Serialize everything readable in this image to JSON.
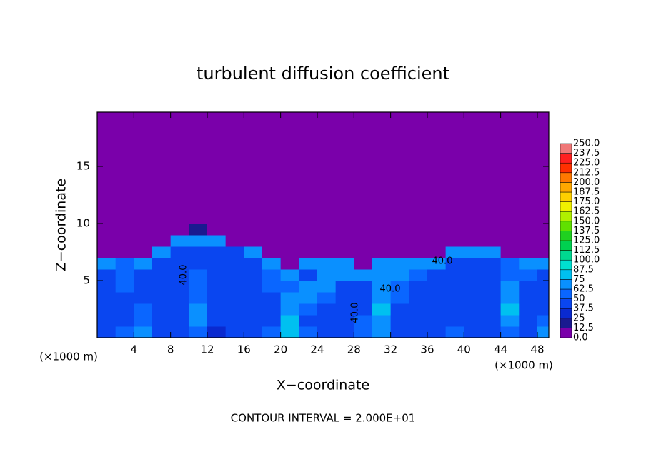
{
  "chart_data": {
    "type": "heatmap",
    "title": "turbulent  diffusion  coefficient",
    "x_label": "X−coordinate",
    "y_label": "Z−coordinate",
    "x_unit_left": "(×1000 m)",
    "x_unit_right": "(×1000 m)",
    "footer": "CONTOUR INTERVAL = 2.000E+01",
    "xlim": [
      0,
      49.25
    ],
    "ylim": [
      0,
      19.75
    ],
    "xticks": [
      4,
      8,
      12,
      16,
      20,
      24,
      28,
      32,
      36,
      40,
      44,
      48
    ],
    "yticks": [
      5,
      10,
      15
    ],
    "x": [
      1,
      3,
      5,
      7,
      9,
      11,
      13,
      15,
      17,
      19,
      21,
      23,
      25,
      27,
      29,
      31,
      33,
      35,
      37,
      39,
      41,
      43,
      45,
      47,
      49
    ],
    "y": [
      0.5,
      1.5,
      2.5,
      3.5,
      4.5,
      5.5,
      6.5,
      7.5,
      8.5,
      9.5
    ],
    "z": [
      [
        45,
        55,
        70,
        40,
        45,
        60,
        35,
        40,
        45,
        55,
        80,
        50,
        40,
        45,
        60,
        70,
        45,
        40,
        45,
        55,
        40,
        45,
        60,
        40,
        70
      ],
      [
        40,
        45,
        60,
        38,
        42,
        70,
        38,
        40,
        42,
        45,
        75,
        45,
        40,
        40,
        55,
        72,
        42,
        40,
        42,
        45,
        40,
        45,
        70,
        38,
        50
      ],
      [
        42,
        40,
        50,
        40,
        40,
        65,
        40,
        38,
        40,
        42,
        70,
        55,
        40,
        38,
        45,
        75,
        45,
        38,
        40,
        42,
        38,
        45,
        75,
        40,
        45
      ],
      [
        40,
        42,
        45,
        42,
        38,
        60,
        40,
        38,
        40,
        45,
        65,
        70,
        50,
        40,
        42,
        70,
        50,
        42,
        40,
        40,
        40,
        42,
        70,
        42,
        48
      ],
      [
        38,
        50,
        40,
        40,
        40,
        55,
        38,
        40,
        40,
        55,
        60,
        70,
        65,
        45,
        40,
        65,
        55,
        45,
        40,
        38,
        40,
        45,
        65,
        45,
        45
      ],
      [
        45,
        55,
        42,
        40,
        38,
        50,
        40,
        38,
        40,
        60,
        65,
        45,
        70,
        70,
        65,
        65,
        65,
        55,
        45,
        40,
        40,
        42,
        60,
        50,
        45
      ],
      [
        65,
        60,
        65,
        40,
        40,
        45,
        40,
        40,
        42,
        70,
        0,
        70,
        70,
        65,
        0,
        70,
        65,
        70,
        70,
        45,
        40,
        45,
        55,
        65,
        65
      ],
      [
        0,
        0,
        0,
        65,
        40,
        40,
        40,
        40,
        65,
        0,
        0,
        0,
        0,
        0,
        0,
        0,
        0,
        0,
        0,
        70,
        65,
        65,
        0,
        0,
        0
      ],
      [
        0,
        0,
        0,
        0,
        65,
        65,
        65,
        0,
        0,
        0,
        0,
        0,
        0,
        0,
        0,
        0,
        0,
        0,
        0,
        0,
        0,
        0,
        0,
        0,
        0
      ],
      [
        0,
        0,
        0,
        0,
        0,
        15,
        0,
        0,
        0,
        0,
        0,
        0,
        0,
        0,
        0,
        0,
        0,
        0,
        0,
        0,
        0,
        0,
        0,
        0,
        0
      ]
    ],
    "contour_labels": [
      {
        "value": 40,
        "label": "40.0"
      },
      {
        "value": 40,
        "label": "40.0"
      },
      {
        "value": 40,
        "label": "40.0"
      },
      {
        "value": 40,
        "label": "40.0"
      }
    ],
    "colorbar": {
      "levels": [
        {
          "value": 0,
          "label": "0.0"
        },
        12.5,
        25.0,
        37.5,
        50.0,
        62.5,
        75.0,
        87.5,
        {
          "value": 100,
          "label": "100.0"
        },
        112.5,
        {
          "value": 125,
          "label": "125.0"
        },
        137.5,
        {
          "value": 150,
          "label": "150.0"
        },
        162.5,
        {
          "value": 175,
          "label": "175.0"
        },
        187.5,
        {
          "value": 200,
          "label": "200.0"
        },
        212.5,
        {
          "value": 225,
          "label": "225.0"
        },
        237.5,
        {
          "value": 250,
          "label": "250.0"
        }
      ],
      "colors": [
        "#7a00aa",
        "#1a1a90",
        "#0a2ad0",
        "#0a46f0",
        "#0a66ff",
        "#0a90ff",
        "#00c0f0",
        "#00e0d0",
        "#00d890",
        "#00d050",
        "#20d020",
        "#60e000",
        "#b0f000",
        "#f0f000",
        "#ffd000",
        "#ffa800",
        "#ff7800",
        "#ff3000",
        "#ff2020",
        "#f07878"
      ]
    }
  }
}
